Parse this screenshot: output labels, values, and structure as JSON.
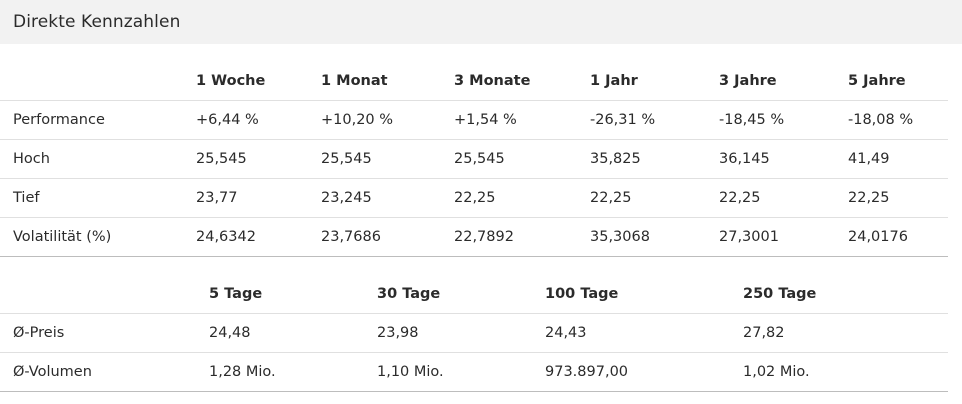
{
  "panel": {
    "title": "Direkte Kennzahlen"
  },
  "colors": {
    "positive": "#2e9a3e",
    "negative": "#e0505a",
    "header_bg": "#f2f2f2"
  },
  "performance_table": {
    "columns": [
      "",
      "1 Woche",
      "1 Monat",
      "3 Monate",
      "1 Jahr",
      "3 Jahre",
      "5 Jahre"
    ],
    "rows": [
      {
        "label": "Performance",
        "values": [
          "+6,44 %",
          "+10,20 %",
          "+1,54 %",
          "-26,31 %",
          "-18,45 %",
          "-18,08 %"
        ],
        "signs": [
          "pos",
          "pos",
          "pos",
          "neg",
          "neg",
          "neg"
        ]
      },
      {
        "label": "Hoch",
        "values": [
          "25,545",
          "25,545",
          "25,545",
          "35,825",
          "36,145",
          "41,49"
        ]
      },
      {
        "label": "Tief",
        "values": [
          "23,77",
          "23,245",
          "22,25",
          "22,25",
          "22,25",
          "22,25"
        ]
      },
      {
        "label": "Volatilität (%)",
        "values": [
          "24,6342",
          "23,7686",
          "22,7892",
          "35,3068",
          "27,3001",
          "24,0176"
        ]
      }
    ]
  },
  "average_table": {
    "columns": [
      "",
      "5 Tage",
      "30 Tage",
      "100 Tage",
      "250 Tage"
    ],
    "rows": [
      {
        "label": "Ø-Preis",
        "values": [
          "24,48",
          "23,98",
          "24,43",
          "27,82"
        ],
        "signs": [
          "pos",
          "pos",
          "pos",
          "pos"
        ]
      },
      {
        "label": "Ø-Volumen",
        "values": [
          "1,28 Mio.",
          "1,10 Mio.",
          "973.897,00",
          "1,02 Mio."
        ]
      }
    ]
  }
}
